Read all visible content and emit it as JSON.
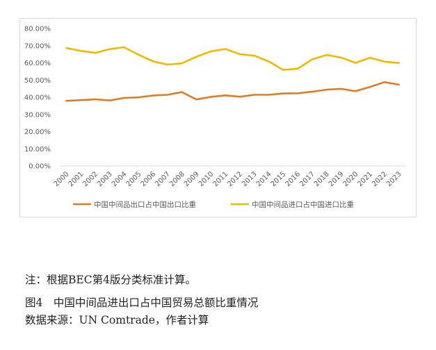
{
  "chart_data": {
    "type": "line",
    "categories": [
      "2000",
      "2001",
      "2002",
      "2003",
      "2004",
      "2005",
      "2006",
      "2007",
      "2008",
      "2009",
      "2010",
      "2011",
      "2012",
      "2013",
      "2014",
      "2015",
      "2016",
      "2017",
      "2018",
      "2019",
      "2020",
      "2021",
      "2022",
      "2023"
    ],
    "series": [
      {
        "name": "中国中间品出口占中国出口比重",
        "color": "#e07b1f",
        "values": [
          37.9,
          38.3,
          38.8,
          38.1,
          39.6,
          39.9,
          41.0,
          41.4,
          43.0,
          38.7,
          40.2,
          41.1,
          40.3,
          41.4,
          41.4,
          42.2,
          42.3,
          43.2,
          44.4,
          44.9,
          43.5,
          46.0,
          48.8,
          47.3
        ]
      },
      {
        "name": "中国中间品进口占中国进口比重",
        "color": "#f2b800",
        "values": [
          68.6,
          67.0,
          65.8,
          68.0,
          69.1,
          64.7,
          60.9,
          59.0,
          59.7,
          63.6,
          66.7,
          68.1,
          65.0,
          64.2,
          60.8,
          55.9,
          56.6,
          62.0,
          64.6,
          63.1,
          60.0,
          63.0,
          60.7,
          59.9
        ]
      }
    ],
    "y_ticks": [
      "0.00%",
      "10.00%",
      "20.00%",
      "30.00%",
      "40.00%",
      "50.00%",
      "60.00%",
      "70.00%",
      "80.00%"
    ],
    "ylim": [
      0,
      80
    ],
    "grid": false,
    "legend_position": "bottom"
  },
  "note": "注：根据BEC第4版分类标准计算。",
  "caption": "图4　中国中间品进出口占中国贸易总额比重情况",
  "source": "数据来源：UN Comtrade，作者计算"
}
